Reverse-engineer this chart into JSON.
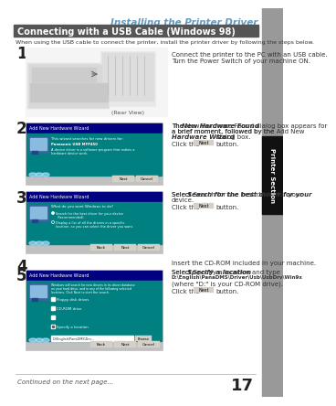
{
  "page_bg": "#ffffff",
  "title_text": "Installing the Printer Driver",
  "title_color": "#6699bb",
  "header_bg": "#555555",
  "header_text": "Connecting with a USB Cable (Windows 98)",
  "header_text_color": "#ffffff",
  "sidebar_bg": "#999999",
  "sidebar_dark_bg": "#111111",
  "sidebar_text": "Printer Section",
  "sidebar_text_color": "#ffffff",
  "footer_continued": "Continued on the next page...",
  "footer_page": "17",
  "intro_text": "When using the USB cable to connect the printer, install the printer driver by following the steps below.",
  "step1_desc": [
    "Connect the printer to the PC with an USB cable.",
    "Turn the Power Switch of your machine ON."
  ],
  "step2_desc": [
    "The ",
    "New Hardware Found",
    " dialog box appears for",
    "a brief moment, followed by the ",
    "Add New",
    "Hardware Wizard",
    " dialog box.",
    "Click the",
    "Next",
    "button."
  ],
  "step3_desc": [
    "Select ",
    "Search for the best driver for your",
    "device.",
    "Click the",
    "Next",
    "button."
  ],
  "step4_desc": "Insert the CD-ROM included in your machine.",
  "step5_desc": [
    "Select ",
    "Specify a location",
    " and type",
    "D:\\English\\PanaDMS\\Driver\\Usb\\UsbDrv\\Win9x",
    "(where \"D:\" is your CD-ROM drive).",
    "Click the",
    "Next",
    "button."
  ],
  "dialog_teal": "#008080",
  "dialog_navy": "#000080",
  "dialog_gray": "#c0c0c0",
  "dialog_btn": "#d4d0c8",
  "dialog_white": "#ffffff",
  "text_color": "#333333",
  "number_color": "#222222"
}
